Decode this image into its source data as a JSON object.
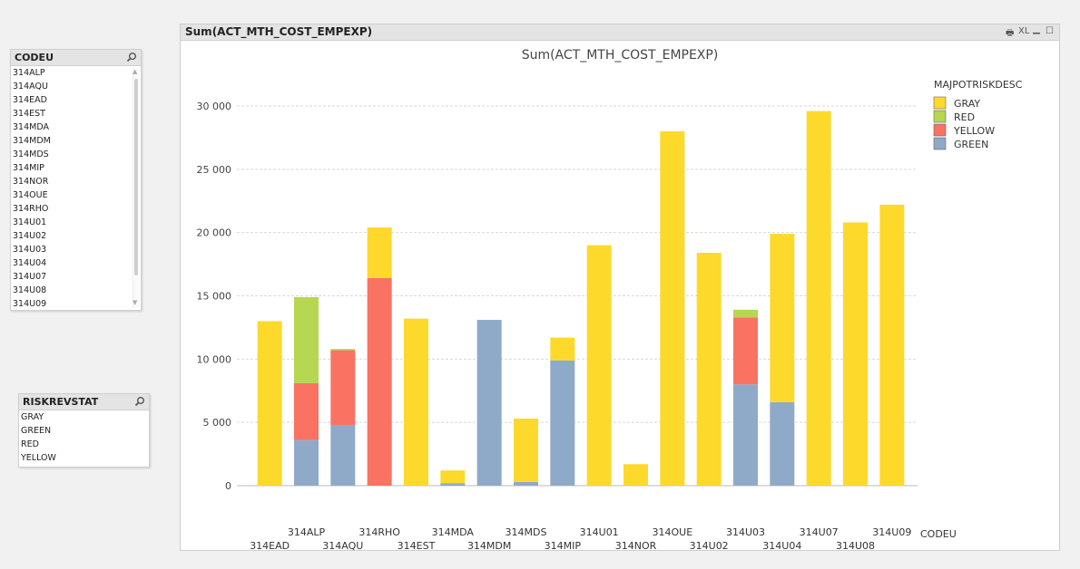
{
  "codeu_listbox": {
    "title": "CODEU",
    "items": [
      "314ALP",
      "314AQU",
      "314EAD",
      "314EST",
      "314MDA",
      "314MDM",
      "314MDS",
      "314MIP",
      "314NOR",
      "314OUE",
      "314RHO",
      "314U01",
      "314U02",
      "314U03",
      "314U04",
      "314U07",
      "314U08",
      "314U09"
    ]
  },
  "riskrevstat_listbox": {
    "title": "RISKREVSTAT",
    "items": [
      "GRAY",
      "GREEN",
      "RED",
      "YELLOW"
    ]
  },
  "chart_window": {
    "caption": "Sum(ACT_MTH_COST_EMPEXP)",
    "print_icon": "🖶",
    "xl_label": "XL",
    "minimize_icon": "▁",
    "maximize_icon": "☐"
  },
  "chart_data": {
    "type": "bar",
    "stacked": true,
    "title": "Sum(ACT_MTH_COST_EMPEXP)",
    "xlabel": "CODEU",
    "ylabel": "",
    "ylim": [
      0,
      30000
    ],
    "yticks": [
      0,
      5000,
      10000,
      15000,
      20000,
      25000,
      30000
    ],
    "ytick_labels": [
      "0",
      "5 000",
      "10 000",
      "15 000",
      "20 000",
      "25 000",
      "30 000"
    ],
    "legend_title": "MAJPOTRISKDESC",
    "legend_position": "top-right",
    "grid": true,
    "categories": [
      "314EAD",
      "314ALP",
      "314AQU",
      "314RHO",
      "314EST",
      "314MDA",
      "314MDM",
      "314MDS",
      "314MIP",
      "314U01",
      "314NOR",
      "314OUE",
      "314U02",
      "314U03",
      "314U04",
      "314U07",
      "314U08",
      "314U09"
    ],
    "series": [
      {
        "name": "GREEN",
        "color": "#8eaac8",
        "values": [
          0,
          3600,
          4800,
          0,
          0,
          200,
          13100,
          300,
          9900,
          0,
          0,
          0,
          0,
          8000,
          6600,
          0,
          0,
          0
        ]
      },
      {
        "name": "YELLOW",
        "color": "#fa7262",
        "values": [
          0,
          4500,
          5900,
          16400,
          0,
          0,
          0,
          0,
          0,
          0,
          0,
          0,
          0,
          5300,
          0,
          0,
          0,
          0
        ]
      },
      {
        "name": "RED",
        "color": "#b7d651",
        "values": [
          0,
          6800,
          100,
          0,
          0,
          0,
          0,
          0,
          0,
          0,
          0,
          0,
          0,
          600,
          0,
          0,
          0,
          0
        ]
      },
      {
        "name": "GRAY",
        "color": "#fdd92c",
        "values": [
          13000,
          0,
          0,
          4000,
          13200,
          1000,
          0,
          5000,
          1800,
          19000,
          1700,
          28000,
          18400,
          0,
          13300,
          29600,
          20800,
          22200
        ]
      }
    ],
    "legend_order": [
      "GRAY",
      "RED",
      "YELLOW",
      "GREEN"
    ]
  }
}
